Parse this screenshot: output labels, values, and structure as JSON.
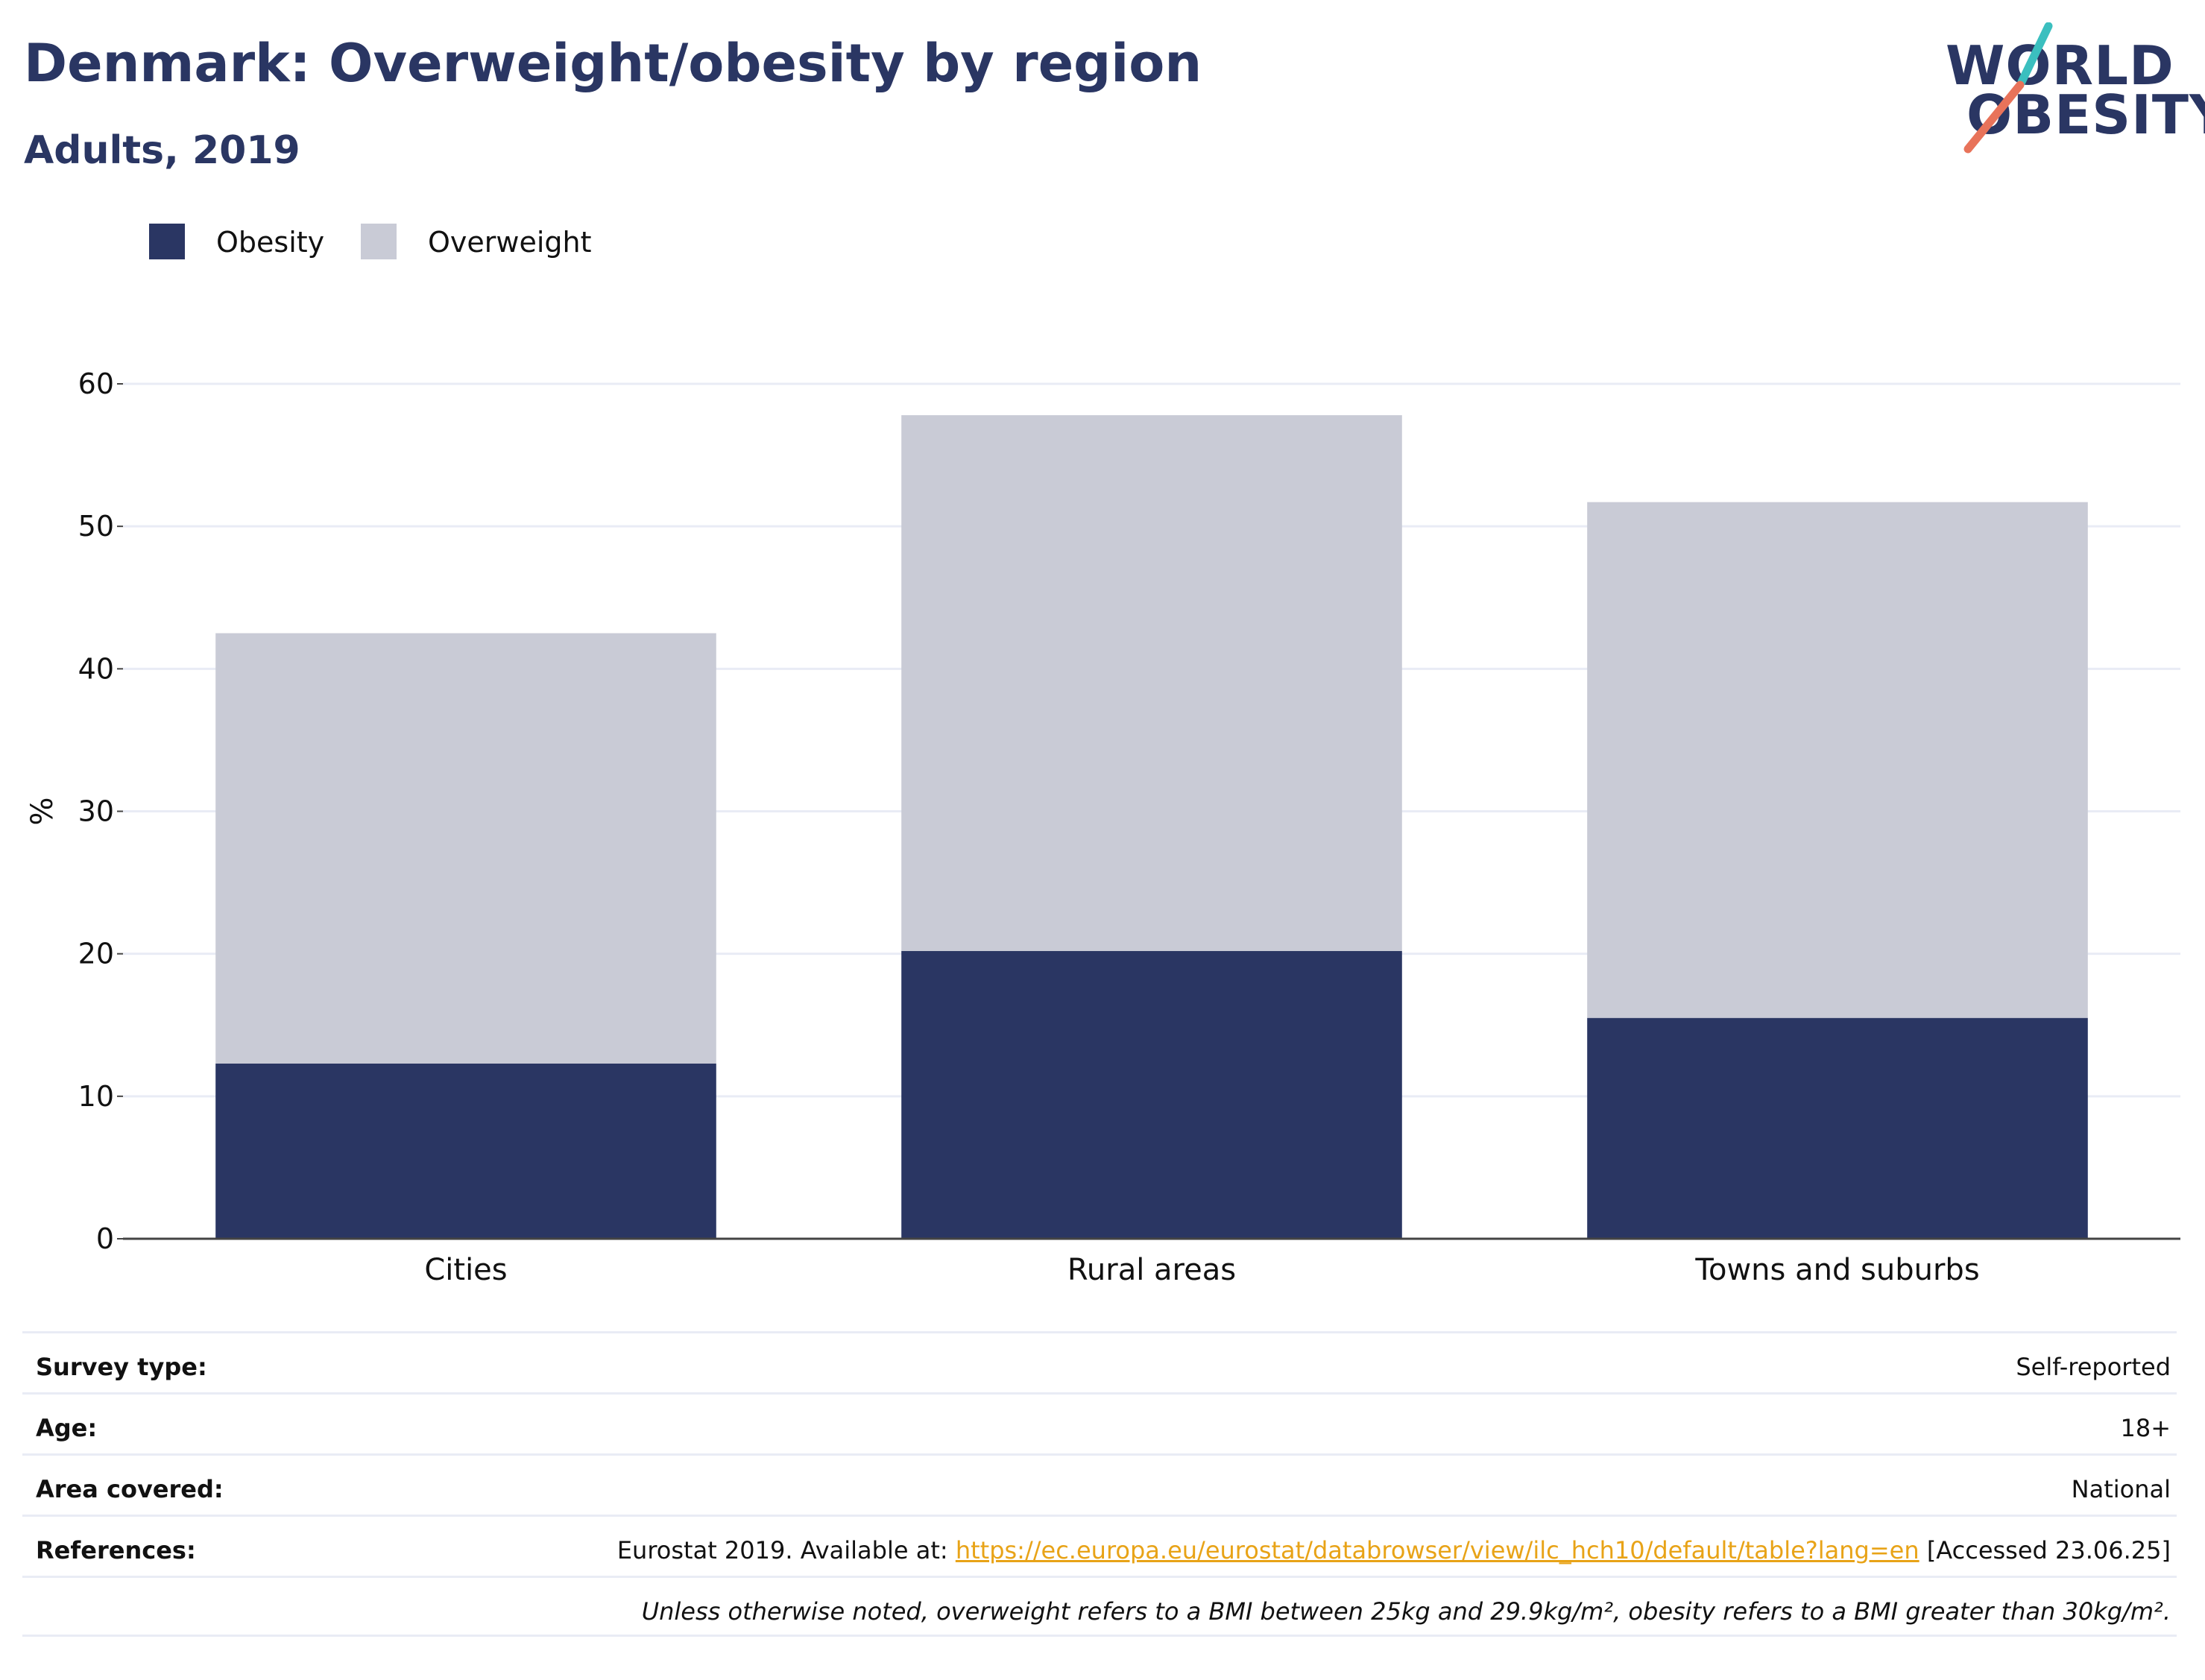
{
  "header": {
    "title": "Denmark: Overweight/obesity by region",
    "subtitle": "Adults, 2019"
  },
  "logo": {
    "line1": "WORLD",
    "line2": "OBESITY",
    "text_color": "#2a3663",
    "slash_teal": "#3bbfbf",
    "slash_coral": "#e8735a"
  },
  "colors": {
    "obesity": "#2a3663",
    "overweight": "#c9cbd6",
    "grid": "#e9ecf5",
    "axis": "#444444",
    "link": "#e8a317"
  },
  "chart_data": {
    "type": "bar",
    "stacked": true,
    "categories": [
      "Cities",
      "Rural areas",
      "Towns and suburbs"
    ],
    "series": [
      {
        "name": "Obesity",
        "values": [
          12.3,
          20.2,
          15.5
        ]
      },
      {
        "name": "Overweight",
        "values": [
          30.2,
          37.6,
          36.2
        ]
      }
    ],
    "title": "Denmark: Overweight/obesity by region",
    "subtitle": "Adults, 2019",
    "xlabel": "",
    "ylabel": "%",
    "ylim": [
      0,
      60
    ],
    "yticks": [
      0,
      10,
      20,
      30,
      40,
      50,
      60
    ],
    "grid": true,
    "legend": "top-left"
  },
  "info": {
    "survey_type": {
      "label": "Survey type:",
      "value": "Self-reported"
    },
    "age": {
      "label": "Age:",
      "value": "18+"
    },
    "area": {
      "label": "Area covered:",
      "value": "National"
    },
    "references": {
      "label": "References:",
      "prefix": "Eurostat 2019. Available at: ",
      "link": "https://ec.europa.eu/eurostat/databrowser/view/ilc_hch10/default/table?lang=en",
      "suffix": " [Accessed 23.06.25]"
    },
    "note": "Unless otherwise noted, overweight refers to a BMI between 25kg and 29.9kg/m², obesity refers to a BMI greater than 30kg/m²."
  }
}
